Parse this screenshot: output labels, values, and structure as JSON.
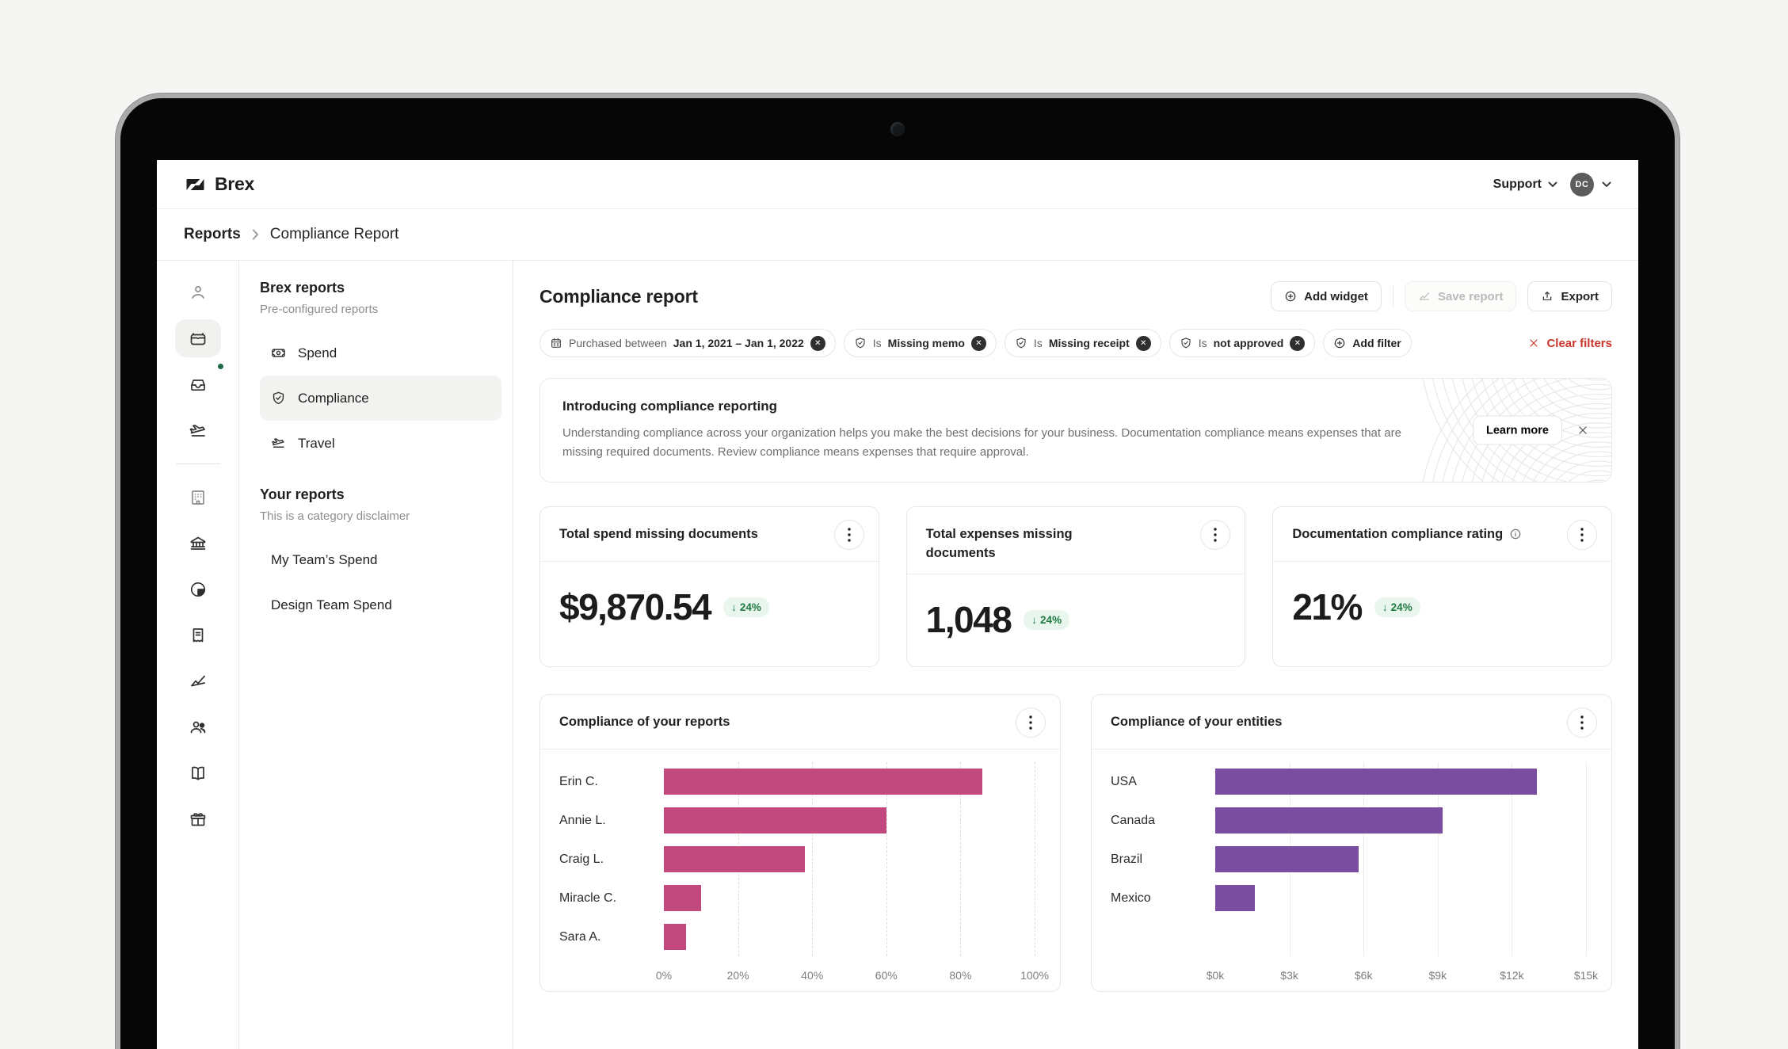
{
  "header": {
    "brand": "Brex",
    "support_label": "Support",
    "avatar_initials": "DC"
  },
  "breadcrumb": {
    "section": "Reports",
    "page": "Compliance Report"
  },
  "icon_rail": [
    "user-icon",
    "cards-icon (active)",
    "inbox-icon (green notification dot)",
    "travel-plane-icon",
    "company-building-icon",
    "bank-icon",
    "pie-chart-icon",
    "receipt-icon",
    "line-chart-icon",
    "team-icon",
    "book-icon",
    "rewards-gift-icon"
  ],
  "sidebar": {
    "section1_title": "Brex reports",
    "section1_subtitle": "Pre-configured reports",
    "items": [
      {
        "label": "Spend",
        "icon": "banknote-icon",
        "selected": false
      },
      {
        "label": "Compliance",
        "icon": "shield-check-icon",
        "selected": true
      },
      {
        "label": "Travel",
        "icon": "plane-icon",
        "selected": false
      }
    ],
    "section2_title": "Your reports",
    "section2_subtitle": "This is a category disclaimer",
    "custom_items": [
      {
        "label": "My Team’s Spend"
      },
      {
        "label": "Design Team Spend"
      }
    ]
  },
  "toolbar": {
    "title": "Compliance report",
    "add_widget_label": "Add widget",
    "save_report_label": "Save report",
    "export_label": "Export"
  },
  "filters": {
    "chips": [
      {
        "icon": "calendar-icon",
        "label": "Purchased between",
        "value": "Jan 1, 2021 – Jan 1, 2022"
      },
      {
        "icon": "shield-check-icon",
        "label": "Is",
        "value": "Missing memo"
      },
      {
        "icon": "shield-check-icon",
        "label": "Is",
        "value": "Missing receipt"
      },
      {
        "icon": "shield-check-icon",
        "label": "Is",
        "value": "not approved"
      }
    ],
    "add_filter_label": "Add filter",
    "clear_filters_label": "Clear filters"
  },
  "banner": {
    "title": "Introducing compliance reporting",
    "body": "Understanding compliance across your organization helps you make the best decisions for your business. Documentation compliance means expenses that are missing required documents. Review compliance means expenses that require approval.",
    "cta_label": "Learn more"
  },
  "kpis": [
    {
      "title": "Total spend missing documents",
      "value": "$9,870.54",
      "delta": "24%",
      "delta_direction": "down",
      "has_info": false
    },
    {
      "title": "Total expenses missing documents",
      "value": "1,048",
      "delta": "24%",
      "delta_direction": "down",
      "has_info": false
    },
    {
      "title": "Documentation compliance rating",
      "value": "21%",
      "delta": "24%",
      "delta_direction": "down",
      "has_info": true
    }
  ],
  "chart_data": [
    {
      "type": "bar",
      "orientation": "horizontal",
      "title": "Compliance of your reports",
      "categories": [
        "Erin C.",
        "Annie L.",
        "Craig L.",
        "Miracle C.",
        "Sara A."
      ],
      "values": [
        86,
        60,
        38,
        10,
        6
      ],
      "x_ticks": [
        "0%",
        "20%",
        "40%",
        "60%",
        "80%",
        "100%"
      ],
      "xlim": [
        0,
        100
      ],
      "bar_color": "#c2497d",
      "grid": "dashed",
      "legend": "none"
    },
    {
      "type": "bar",
      "orientation": "horizontal",
      "title": "Compliance of your entities",
      "categories": [
        "USA",
        "Canada",
        "Brazil",
        "Mexico"
      ],
      "values": [
        13000,
        9200,
        5800,
        1600
      ],
      "x_ticks": [
        "$0k",
        "$3k",
        "$6k",
        "$9k",
        "$12k",
        "$15k"
      ],
      "xlim": [
        0,
        15000
      ],
      "bar_color": "#7a4da0",
      "grid": "solid",
      "legend": "none"
    }
  ],
  "colors": {
    "bar_pink": "#c2497d",
    "bar_purple": "#7a4da0",
    "positive_green": "#1f7a41",
    "positive_green_bg": "#e9f6ee",
    "danger_red": "#cc3529"
  }
}
